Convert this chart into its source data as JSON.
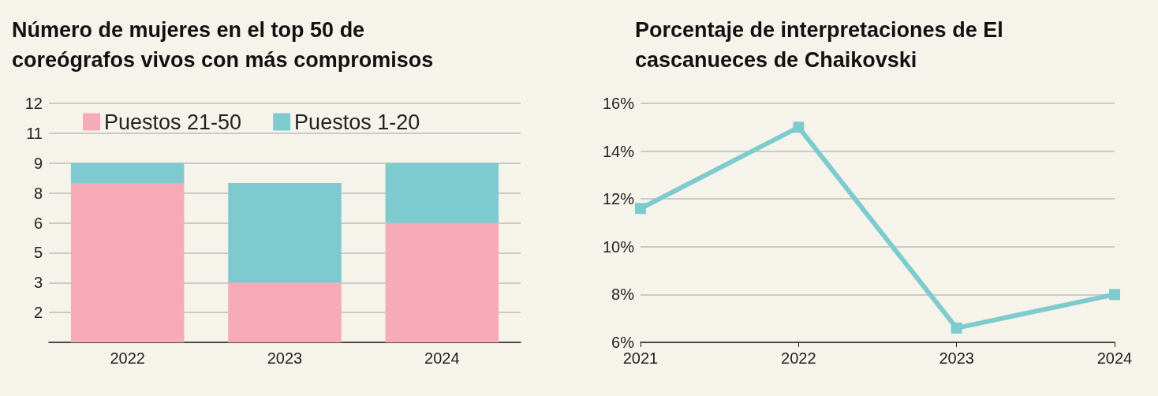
{
  "chart_data": [
    {
      "type": "bar",
      "title": "Número de mujeres en el top 50 de coreógrafos vivos con más compromisos",
      "categories": [
        "2022",
        "2023",
        "2024"
      ],
      "stacked": true,
      "series": [
        {
          "name": "Puestos 21-50",
          "color": "#f7aab8",
          "values": [
            8,
            3,
            6
          ]
        },
        {
          "name": "Puestos 1-20",
          "color": "#7ecbcf",
          "values": [
            1,
            5,
            3
          ]
        }
      ],
      "ylim": [
        0,
        12
      ],
      "yticks": [
        {
          "value": 0,
          "label": null
        },
        {
          "value": 1.5,
          "label": "2"
        },
        {
          "value": 3,
          "label": "3"
        },
        {
          "value": 4.5,
          "label": "5"
        },
        {
          "value": 6,
          "label": "6"
        },
        {
          "value": 7.5,
          "label": "8"
        },
        {
          "value": 9,
          "label": "9"
        },
        {
          "value": 10.5,
          "label": "11"
        },
        {
          "value": 12,
          "label": "12"
        }
      ],
      "grid": "y",
      "legend": "top"
    },
    {
      "type": "line",
      "title": "Porcentaje de interpretaciones de El cascanueces de Chaikovski",
      "categories": [
        "2021",
        "2022",
        "2023",
        "2024"
      ],
      "series": [
        {
          "color": "#7ecbcf",
          "values": [
            11.6,
            15.0,
            6.6,
            8.0
          ]
        }
      ],
      "ylim": [
        6,
        16
      ],
      "yticks": [
        {
          "value": 6,
          "label": "6%"
        },
        {
          "value": 8,
          "label": "8%"
        },
        {
          "value": 10,
          "label": "10%"
        },
        {
          "value": 12,
          "label": "12%"
        },
        {
          "value": 14,
          "label": "14%"
        },
        {
          "value": 16,
          "label": "16%"
        }
      ],
      "grid": "y",
      "marker": "square",
      "line_style": "solid",
      "legend": false
    }
  ]
}
